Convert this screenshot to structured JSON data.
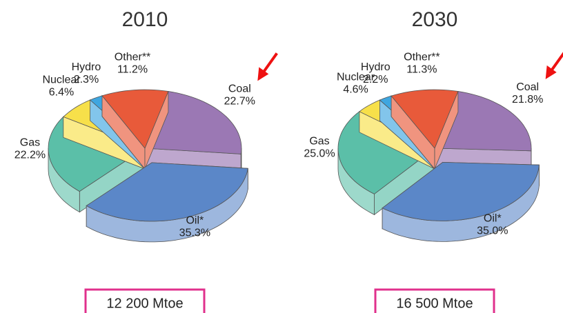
{
  "chart_data": [
    {
      "type": "pie",
      "title": "2010",
      "note": "12 200 Mtoe",
      "categories": [
        "Coal",
        "Oil*",
        "Gas",
        "Nuclear",
        "Hydro",
        "Other**"
      ],
      "values": [
        22.7,
        35.3,
        22.2,
        6.4,
        2.3,
        11.2
      ],
      "value_labels": [
        "22.7%",
        "35.3%",
        "22.2%",
        "6.4%",
        "2.3%",
        "11.2%"
      ],
      "colors": [
        "#9b78b4",
        "#5b87c8",
        "#5bbfa8",
        "#f7e04a",
        "#3ea6e0",
        "#e85a3a"
      ],
      "exploded": "Oil*"
    },
    {
      "type": "pie",
      "title": "2030",
      "note": "16 500 Mtoe",
      "categories": [
        "Coal",
        "Oil*",
        "Gas",
        "Nuclear",
        "Hydro",
        "Other**"
      ],
      "values": [
        21.8,
        35.0,
        25.0,
        4.6,
        2.2,
        11.3
      ],
      "value_labels": [
        "21.8%",
        "35.0%",
        "25.0%",
        "4.6%",
        "2.2%",
        "11.3%"
      ],
      "colors": [
        "#9b78b4",
        "#5b87c8",
        "#5bbfa8",
        "#f7e04a",
        "#3ea6e0",
        "#e85a3a"
      ],
      "exploded": "Oil*"
    }
  ]
}
